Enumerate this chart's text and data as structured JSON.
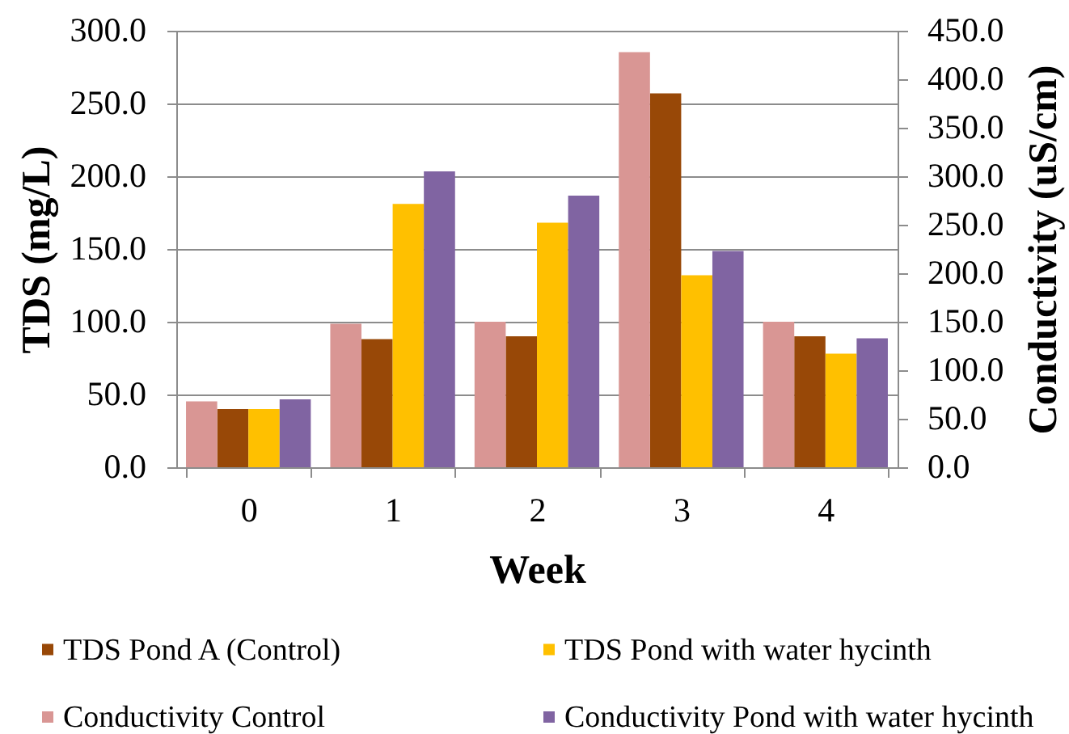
{
  "chart_data": {
    "type": "bar",
    "xlabel": "Week",
    "ylabel": "TDS (mg/L)",
    "y2label": "Conductivity (uS/cm)",
    "categories": [
      "0",
      "1",
      "2",
      "3",
      "4"
    ],
    "series": [
      {
        "name": "Conductivity Control",
        "color": "#d99694",
        "axis": "y2",
        "values": [
          68,
          148,
          150,
          428,
          150
        ]
      },
      {
        "name": "TDS Pond A (Control)",
        "color": "#984807",
        "values": [
          40,
          88,
          90,
          257,
          90
        ]
      },
      {
        "name": "TDS Pond with water hycinth",
        "color": "#ffc000",
        "values": [
          40,
          181,
          168,
          132,
          78
        ]
      },
      {
        "name": "Conductivity Pond with water hycinth",
        "color": "#8064a2",
        "axis": "y2",
        "values": [
          70,
          305,
          280,
          223,
          133
        ]
      }
    ],
    "ylim": [
      0,
      300
    ],
    "yticks": [
      {
        "value": 0,
        "label": "0.0"
      },
      {
        "value": 50,
        "label": "50.0"
      },
      {
        "value": 100,
        "label": "100.0"
      },
      {
        "value": 150,
        "label": "150.0"
      },
      {
        "value": 200,
        "label": "200.0"
      },
      {
        "value": 250,
        "label": "250.0"
      },
      {
        "value": 300,
        "label": "300.0"
      }
    ],
    "y2lim": [
      0,
      450
    ],
    "y2ticks": [
      {
        "value": 0,
        "label": "0.0"
      },
      {
        "value": 50,
        "label": "50.0"
      },
      {
        "value": 100,
        "label": "100.0"
      },
      {
        "value": 150,
        "label": "150.0"
      },
      {
        "value": 200,
        "label": "200.0"
      },
      {
        "value": 250,
        "label": "250.0"
      },
      {
        "value": 300,
        "label": "300.0"
      },
      {
        "value": 350,
        "label": "350.0"
      },
      {
        "value": 400,
        "label": "400.0"
      },
      {
        "value": 450,
        "label": "450.0"
      }
    ],
    "grid": "y",
    "legend": "bottom"
  }
}
